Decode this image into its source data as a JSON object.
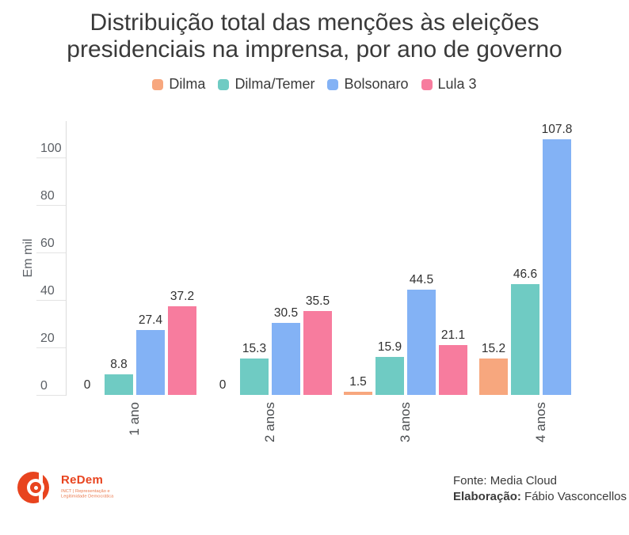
{
  "title": {
    "line1": "Distribuição total das menções às eleições",
    "line2": "presidenciais na imprensa, por ano de governo"
  },
  "chart_data": {
    "type": "bar",
    "title": "Distribuição total das menções às eleições presidenciais na imprensa, por ano de governo",
    "categories": [
      "1 ano",
      "2 anos",
      "3 anos",
      "4 anos"
    ],
    "series": [
      {
        "name": "Dilma",
        "color": "#F7A77E",
        "values": [
          0,
          0,
          1.5,
          15.2
        ]
      },
      {
        "name": "Dilma/Temer",
        "color": "#6FCBC3",
        "values": [
          8.8,
          15.3,
          15.9,
          46.6
        ]
      },
      {
        "name": "Bolsonaro",
        "color": "#83B2F5",
        "values": [
          27.4,
          30.5,
          44.5,
          107.8
        ]
      },
      {
        "name": "Lula 3",
        "color": "#F77C9E",
        "values": [
          37.2,
          35.5,
          21.1,
          null
        ]
      }
    ],
    "xlabel": "",
    "ylabel": "Em mil",
    "yticks": [
      0,
      20,
      40,
      60,
      80,
      100
    ],
    "ylim": [
      0,
      115
    ],
    "grid": false,
    "legend_position": "top",
    "value_labels": true
  },
  "footer": {
    "source_label": "Fonte: Media Cloud",
    "elaboration_label": "Elaboração:",
    "elaboration_value": " Fábio Vasconcellos",
    "logo": {
      "name": "ReDem",
      "tagline_line1": "INCT | Representação e",
      "tagline_line2": "Legitimidade Democrática",
      "color": "#E8441F",
      "tagline_color": "#EB7A4E"
    }
  }
}
